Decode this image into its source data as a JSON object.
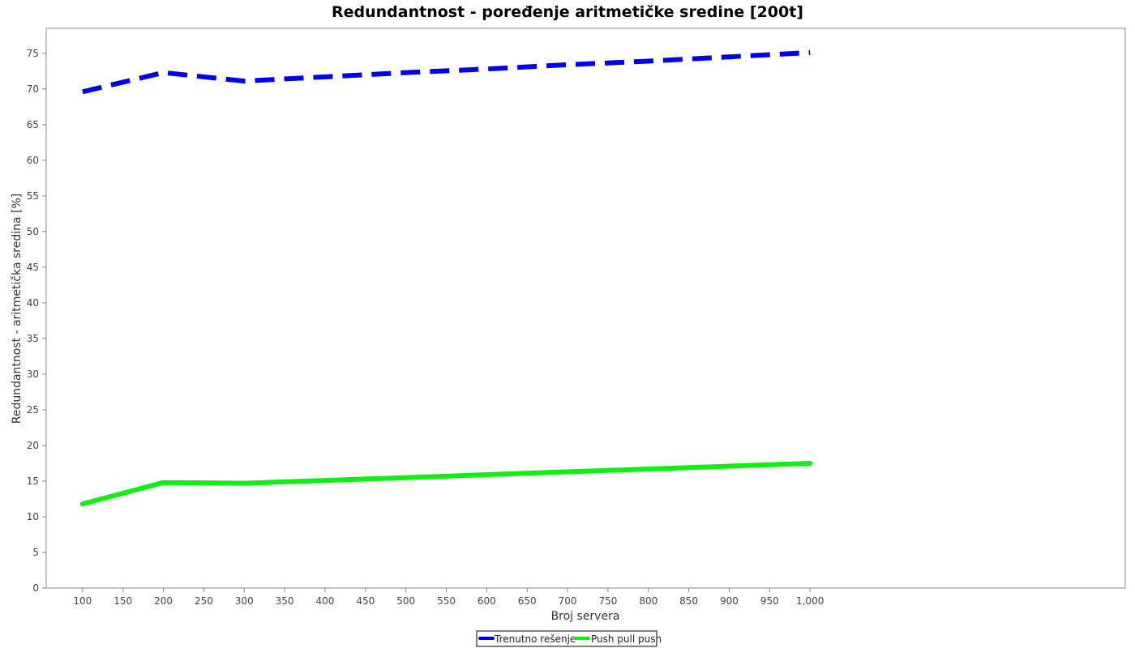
{
  "chart_data": {
    "type": "line",
    "title": "Redundantnost - poređenje aritmetičke sredine [200t]",
    "xlabel": "Broj servera",
    "ylabel": "Redundantnost - aritmetička sredina [%]",
    "xlim": [
      55,
      1390
    ],
    "ylim": [
      0,
      78.5
    ],
    "x_ticks": [
      100,
      150,
      200,
      250,
      300,
      350,
      400,
      450,
      500,
      550,
      600,
      650,
      700,
      750,
      800,
      850,
      900,
      950,
      1000
    ],
    "x_tick_labels": [
      "100",
      "150",
      "200",
      "250",
      "300",
      "350",
      "400",
      "450",
      "500",
      "550",
      "600",
      "650",
      "700",
      "750",
      "800",
      "850",
      "900",
      "950",
      "1,000"
    ],
    "y_ticks": [
      0,
      5,
      10,
      15,
      20,
      25,
      30,
      35,
      40,
      45,
      50,
      55,
      60,
      65,
      70,
      75
    ],
    "y_tick_labels": [
      "0",
      "5",
      "10",
      "15",
      "20",
      "25",
      "30",
      "35",
      "40",
      "45",
      "50",
      "55",
      "60",
      "65",
      "70",
      "75"
    ],
    "grid": false,
    "legend_position": "bottom-center",
    "x": [
      100,
      200,
      300,
      400,
      500,
      600,
      700,
      800,
      900,
      1000
    ],
    "series": [
      {
        "name": "Trenutno rešenje",
        "color": "#0000ee",
        "dashed": true,
        "values": [
          69.6,
          72.3,
          71.1,
          71.7,
          72.3,
          72.8,
          73.4,
          73.9,
          74.5,
          75.1
        ]
      },
      {
        "name": "Push pull push",
        "color": "#11ee11",
        "dashed": false,
        "values": [
          11.8,
          14.8,
          14.7,
          15.1,
          15.5,
          15.9,
          16.3,
          16.7,
          17.1,
          17.5
        ]
      }
    ]
  }
}
